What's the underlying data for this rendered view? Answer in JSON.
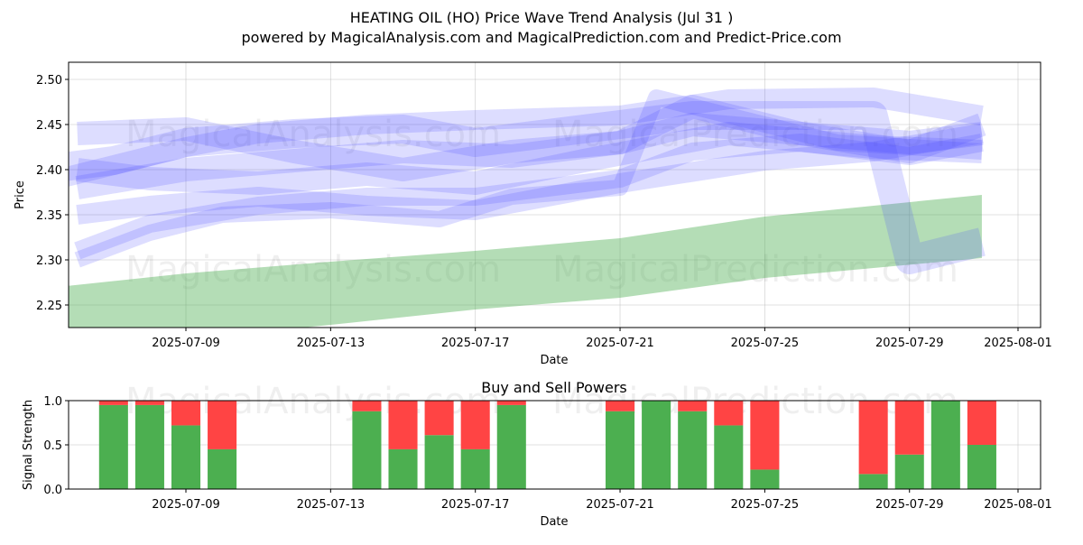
{
  "header": {
    "title": "HEATING OIL (HO) Price Wave Trend Analysis (Jul 31 )",
    "subtitle": "powered by MagicalAnalysis.com and MagicalPrediction.com and Predict-Price.com"
  },
  "watermarks": [
    "MagicalAnalysis.com",
    "MagicalPrediction.com"
  ],
  "colors": {
    "wave": "#4040ff",
    "trend": "#4caf50",
    "buy": "#4caf50",
    "sell": "#ff4444"
  },
  "chart_data": [
    {
      "type": "area",
      "xlabel": "Date",
      "ylabel": "Price",
      "ylim": [
        2.225,
        2.52
      ],
      "yticks": [
        2.25,
        2.3,
        2.35,
        2.4,
        2.45,
        2.5
      ],
      "ytick_labels": [
        "2.25",
        "2.30",
        "2.35",
        "2.40",
        "2.45",
        "2.50"
      ],
      "xlim": [
        "2025-07-05",
        "2025-08-01"
      ],
      "xtick_labels": [
        "2025-07-09",
        "2025-07-13",
        "2025-07-17",
        "2025-07-21",
        "2025-07-25",
        "2025-07-29",
        "2025-08-01"
      ],
      "grid": true,
      "trend_band": {
        "x": [
          "2025-07-05",
          "2025-07-09",
          "2025-07-13",
          "2025-07-17",
          "2025-07-21",
          "2025-07-25",
          "2025-07-31"
        ],
        "upper": [
          2.268,
          2.285,
          2.298,
          2.31,
          2.324,
          2.348,
          2.372
        ],
        "lower": [
          2.2,
          2.212,
          2.228,
          2.245,
          2.258,
          2.28,
          2.302
        ]
      },
      "waves": [
        {
          "x": [
            "2025-07-05",
            "2025-07-07",
            "2025-07-09",
            "2025-07-11",
            "2025-07-14",
            "2025-07-17",
            "2025-07-21",
            "2025-07-24",
            "2025-07-28",
            "2025-07-31"
          ],
          "y": [
            2.385,
            2.405,
            2.425,
            2.44,
            2.45,
            2.455,
            2.46,
            2.478,
            2.48,
            2.46
          ],
          "width": 22
        },
        {
          "x": [
            "2025-07-05",
            "2025-07-07",
            "2025-07-09",
            "2025-07-12",
            "2025-07-15",
            "2025-07-17",
            "2025-07-20",
            "2025-07-23",
            "2025-07-28",
            "2025-07-29",
            "2025-07-31"
          ],
          "y": [
            2.4,
            2.41,
            2.43,
            2.44,
            2.445,
            2.43,
            2.445,
            2.46,
            2.46,
            2.3,
            2.32
          ],
          "width": 32
        },
        {
          "x": [
            "2025-07-06",
            "2025-07-08",
            "2025-07-11",
            "2025-07-14",
            "2025-07-17",
            "2025-07-20",
            "2025-07-24",
            "2025-07-28",
            "2025-07-31"
          ],
          "y": [
            2.4,
            2.39,
            2.385,
            2.395,
            2.385,
            2.41,
            2.44,
            2.425,
            2.42
          ],
          "width": 26
        },
        {
          "x": [
            "2025-07-06",
            "2025-07-09",
            "2025-07-12",
            "2025-07-15",
            "2025-07-18",
            "2025-07-21",
            "2025-07-23",
            "2025-07-26",
            "2025-07-29",
            "2025-07-31"
          ],
          "y": [
            2.38,
            2.4,
            2.41,
            2.42,
            2.415,
            2.43,
            2.45,
            2.44,
            2.43,
            2.44
          ],
          "width": 26
        },
        {
          "x": [
            "2025-07-06",
            "2025-07-08",
            "2025-07-11",
            "2025-07-14",
            "2025-07-17",
            "2025-07-21",
            "2025-07-25",
            "2025-07-28",
            "2025-07-31"
          ],
          "y": [
            2.35,
            2.36,
            2.37,
            2.36,
            2.355,
            2.385,
            2.41,
            2.42,
            2.44
          ],
          "width": 22
        },
        {
          "x": [
            "2025-07-06",
            "2025-07-08",
            "2025-07-11",
            "2025-07-14",
            "2025-07-17",
            "2025-07-21",
            "2025-07-23",
            "2025-07-26",
            "2025-07-29",
            "2025-07-31"
          ],
          "y": [
            2.31,
            2.34,
            2.36,
            2.37,
            2.37,
            2.39,
            2.42,
            2.43,
            2.415,
            2.43
          ],
          "width": 20
        },
        {
          "x": [
            "2025-07-06",
            "2025-07-08",
            "2025-07-10",
            "2025-07-13",
            "2025-07-16",
            "2025-07-18",
            "2025-07-21",
            "2025-07-22",
            "2025-07-24",
            "2025-07-27",
            "2025-07-31"
          ],
          "y": [
            2.3,
            2.33,
            2.35,
            2.355,
            2.345,
            2.37,
            2.38,
            2.48,
            2.46,
            2.43,
            2.42
          ],
          "width": 18
        },
        {
          "x": [
            "2025-07-06",
            "2025-07-09",
            "2025-07-12",
            "2025-07-15",
            "2025-07-18",
            "2025-07-21",
            "2025-07-23",
            "2025-07-26",
            "2025-07-29",
            "2025-07-31"
          ],
          "y": [
            2.44,
            2.445,
            2.42,
            2.4,
            2.42,
            2.43,
            2.47,
            2.44,
            2.42,
            2.45
          ],
          "width": 26
        }
      ]
    },
    {
      "type": "bar",
      "title": "Buy and Sell Powers",
      "xlabel": "Date",
      "ylabel": "Signal Strength",
      "ylim": [
        0,
        1
      ],
      "yticks": [
        0,
        0.5,
        1
      ],
      "ytick_labels": [
        "0.0",
        "0.5",
        "1.0"
      ],
      "xlim": [
        "2025-07-05",
        "2025-08-01"
      ],
      "xtick_labels": [
        "2025-07-09",
        "2025-07-13",
        "2025-07-17",
        "2025-07-21",
        "2025-07-25",
        "2025-07-29",
        "2025-08-01"
      ],
      "grid": true,
      "dates": [
        "2025-07-07",
        "2025-07-08",
        "2025-07-09",
        "2025-07-10",
        "2025-07-14",
        "2025-07-15",
        "2025-07-16",
        "2025-07-17",
        "2025-07-18",
        "2025-07-21",
        "2025-07-22",
        "2025-07-23",
        "2025-07-24",
        "2025-07-25",
        "2025-07-28",
        "2025-07-29",
        "2025-07-30",
        "2025-07-31"
      ],
      "series": [
        {
          "name": "Buy",
          "values": [
            0.95,
            0.95,
            0.72,
            0.45,
            0.88,
            0.45,
            0.61,
            0.45,
            0.95,
            0.88,
            1.0,
            0.88,
            0.72,
            0.22,
            0.17,
            0.39,
            1.0,
            0.5
          ]
        },
        {
          "name": "Sell",
          "values": [
            0.05,
            0.05,
            0.28,
            0.55,
            0.12,
            0.55,
            0.39,
            0.55,
            0.05,
            0.12,
            0.0,
            0.12,
            0.28,
            0.78,
            0.83,
            0.61,
            0.0,
            0.5
          ]
        }
      ]
    }
  ]
}
